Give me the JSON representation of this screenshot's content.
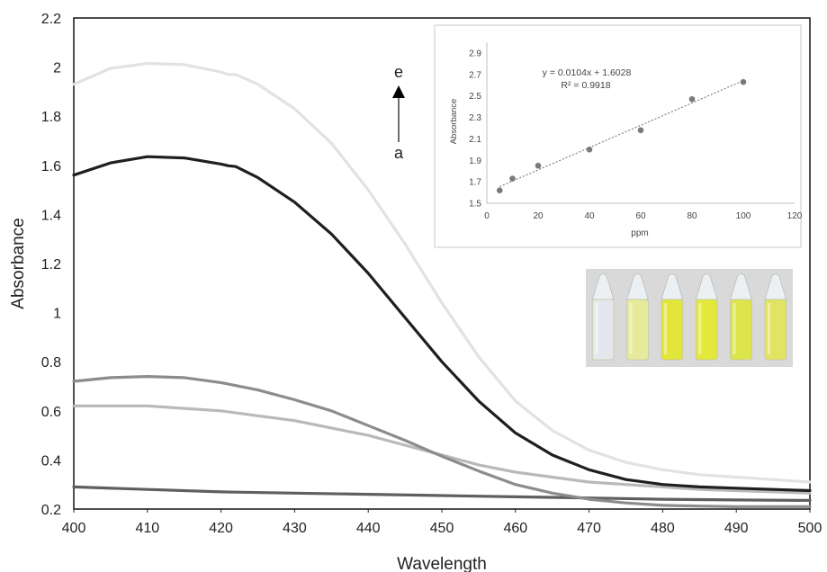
{
  "chart_data": [
    {
      "type": "line",
      "xlabel": "Wavelength",
      "ylabel": "Absorbance",
      "xlim": [
        400,
        500
      ],
      "ylim": [
        0.2,
        2.2
      ],
      "xticks": [
        "400",
        "410",
        "420",
        "430",
        "440",
        "450",
        "460",
        "470",
        "480",
        "490",
        "500"
      ],
      "yticks": [
        "0.2",
        "0.4",
        "0.6",
        "0.8",
        "1",
        "1.2",
        "1.4",
        "1.6",
        "1.8",
        "2",
        "2.2"
      ],
      "grid": false,
      "annotation": {
        "top_label": "e",
        "bottom_label": "a"
      },
      "series": [
        {
          "color": "#5f5f5f",
          "x": [
            400,
            410,
            420,
            430,
            440,
            450,
            460,
            470,
            480,
            490,
            500
          ],
          "y": [
            0.29,
            0.28,
            0.27,
            0.265,
            0.26,
            0.255,
            0.25,
            0.245,
            0.24,
            0.237,
            0.235
          ]
        },
        {
          "color": "#b9b9b9",
          "x": [
            400,
            405,
            410,
            415,
            420,
            425,
            430,
            435,
            440,
            445,
            450,
            455,
            460,
            465,
            470,
            475,
            480,
            485,
            490,
            495,
            500
          ],
          "y": [
            0.62,
            0.62,
            0.62,
            0.61,
            0.6,
            0.58,
            0.56,
            0.53,
            0.5,
            0.46,
            0.42,
            0.38,
            0.35,
            0.33,
            0.31,
            0.3,
            0.29,
            0.28,
            0.275,
            0.27,
            0.265
          ]
        },
        {
          "color": "#8c8c8c",
          "x": [
            400,
            405,
            410,
            415,
            420,
            425,
            430,
            435,
            440,
            445,
            450,
            455,
            460,
            465,
            470,
            475,
            480,
            485,
            490,
            495,
            500
          ],
          "y": [
            0.72,
            0.735,
            0.74,
            0.735,
            0.715,
            0.685,
            0.645,
            0.6,
            0.54,
            0.48,
            0.415,
            0.355,
            0.3,
            0.265,
            0.24,
            0.225,
            0.215,
            0.212,
            0.21,
            0.21,
            0.21
          ]
        },
        {
          "color": "#e2e2e2",
          "x": [
            400,
            405,
            410,
            415,
            420,
            421,
            422,
            425,
            430,
            435,
            440,
            445,
            450,
            455,
            460,
            465,
            470,
            475,
            480,
            485,
            490,
            495,
            500
          ],
          "y": [
            1.93,
            1.995,
            2.015,
            2.01,
            1.98,
            1.97,
            1.97,
            1.93,
            1.83,
            1.69,
            1.5,
            1.28,
            1.04,
            0.82,
            0.64,
            0.52,
            0.44,
            0.39,
            0.36,
            0.34,
            0.33,
            0.32,
            0.31
          ]
        },
        {
          "color": "#1f1f1f",
          "x": [
            400,
            405,
            410,
            415,
            420,
            421,
            422,
            425,
            430,
            435,
            440,
            445,
            450,
            455,
            460,
            465,
            470,
            475,
            480,
            485,
            490,
            495,
            500
          ],
          "y": [
            1.56,
            1.61,
            1.635,
            1.63,
            1.605,
            1.598,
            1.595,
            1.55,
            1.45,
            1.32,
            1.16,
            0.98,
            0.8,
            0.64,
            0.51,
            0.42,
            0.36,
            0.32,
            0.3,
            0.29,
            0.285,
            0.28,
            0.275
          ]
        }
      ]
    },
    {
      "type": "scatter",
      "xlabel": "ppm",
      "ylabel": "Absorbance",
      "xlim": [
        0,
        120
      ],
      "ylim": [
        1.5,
        3.0
      ],
      "xticks": [
        "0",
        "20",
        "40",
        "60",
        "80",
        "100",
        "120"
      ],
      "yticks": [
        "1.5",
        "1.7",
        "1.9",
        "2.1",
        "2.3",
        "2.5",
        "2.7",
        "2.9"
      ],
      "equation": "y = 0.0104x + 1.6028",
      "r_squared": "R² = 0.9918",
      "trendline": {
        "slope": 0.0104,
        "intercept": 1.6028
      },
      "points": {
        "x": [
          5,
          10,
          20,
          40,
          60,
          80,
          100
        ],
        "y": [
          1.62,
          1.73,
          1.85,
          2.0,
          2.18,
          2.47,
          2.63
        ]
      },
      "point_color": "#7a7a7a"
    }
  ],
  "photo": {
    "background": "#d9d9d9",
    "vial_colors": [
      "#e4e8ec",
      "#e6ea9a",
      "#e2e63a",
      "#e3e83a",
      "#dde54c",
      "#e0e462"
    ],
    "cap_color": "#ecf0f2"
  }
}
